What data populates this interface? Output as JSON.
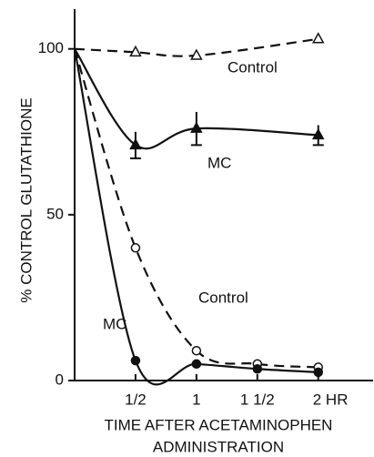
{
  "chart_data": {
    "type": "line",
    "ylabel": "% CONTROL GLUTATHIONE",
    "xlabel": [
      "TIME AFTER ACETAMINOPHEN",
      "ADMINISTRATION"
    ],
    "xlim": [
      0,
      2.45
    ],
    "ylim": [
      0,
      112
    ],
    "xticks": [
      {
        "value": 0.5,
        "label": "1/2"
      },
      1,
      {
        "value": 1.5,
        "label": "1 1/2"
      },
      {
        "value": 2,
        "label": "2 HR"
      }
    ],
    "yticks": [
      0,
      50,
      100
    ],
    "series": [
      {
        "name": "Control",
        "color": "#111111",
        "dashed": true,
        "marker": "open-triangle",
        "x": [
          0,
          0.5,
          1,
          2
        ],
        "values": [
          100,
          99,
          98,
          103
        ]
      },
      {
        "name": "MC",
        "color": "#111111",
        "dashed": false,
        "marker": "filled-triangle",
        "x": [
          0,
          0.5,
          1,
          2
        ],
        "values": [
          100,
          71,
          76,
          74
        ],
        "errors": [
          null,
          4,
          5,
          3
        ]
      },
      {
        "name": "Control",
        "color": "#111111",
        "dashed": true,
        "marker": "open-circle",
        "x": [
          0,
          0.5,
          1,
          1.5,
          2
        ],
        "values": [
          100,
          40,
          9,
          5,
          4
        ]
      },
      {
        "name": "MC",
        "color": "#111111",
        "dashed": false,
        "marker": "filled-circle",
        "x": [
          0,
          0.5,
          1,
          1.5,
          2
        ],
        "values": [
          100,
          6,
          5,
          3.5,
          2.5
        ]
      }
    ]
  }
}
